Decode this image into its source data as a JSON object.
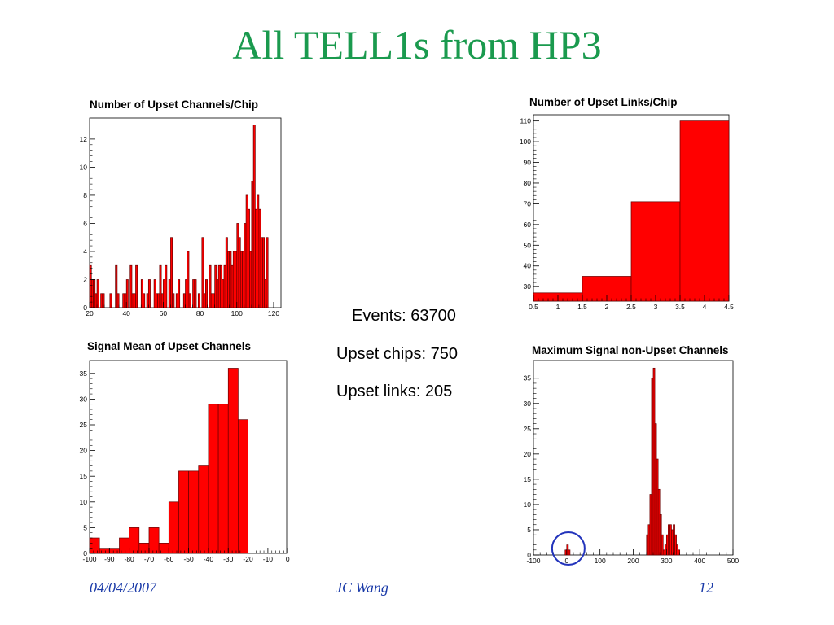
{
  "slide": {
    "title": "All TELL1s from HP3"
  },
  "stats": {
    "events": "Events: 63700",
    "upset_chips": "Upset chips: 750",
    "upset_links": "Upset links:  205"
  },
  "footer": {
    "date": "04/04/2007",
    "author": "JC Wang",
    "page": "12"
  },
  "colors": {
    "fill": "#ff0000",
    "stroke": "#000000",
    "title": "#1a9a4e",
    "footer": "#1a3aa8",
    "highlight_circle": "#2233bb"
  },
  "chart_data": [
    {
      "type": "bar",
      "title": "Number of Upset Channels/Chip",
      "xlim": [
        20,
        124
      ],
      "ylim": [
        0,
        13.5
      ],
      "xticks": [
        20,
        40,
        60,
        80,
        100,
        120
      ],
      "yticks": [
        0,
        2,
        4,
        6,
        8,
        10,
        12
      ],
      "bin_start": 20,
      "bin_width": 1,
      "values": [
        3,
        2,
        2,
        1,
        2,
        0,
        1,
        1,
        0,
        0,
        0,
        1,
        0,
        0,
        3,
        1,
        0,
        0,
        1,
        1,
        2,
        0,
        3,
        1,
        1,
        3,
        0,
        0,
        2,
        1,
        0,
        1,
        2,
        0,
        0,
        2,
        1,
        1,
        3,
        1,
        2,
        3,
        0,
        2,
        5,
        1,
        0,
        1,
        2,
        0,
        0,
        1,
        2,
        4,
        1,
        0,
        2,
        2,
        0,
        1,
        0,
        5,
        1,
        2,
        0,
        3,
        1,
        1,
        3,
        2,
        3,
        3,
        2,
        3,
        5,
        4,
        4,
        3,
        4,
        4,
        6,
        5,
        4,
        4,
        6,
        8,
        7,
        4,
        9,
        13,
        7,
        8,
        7,
        5,
        5,
        2,
        5
      ]
    },
    {
      "type": "bar",
      "title": "Number of Upset Links/Chip",
      "xlim": [
        0.5,
        4.5
      ],
      "ylim": [
        23,
        113
      ],
      "xticks": [
        0.5,
        1,
        1.5,
        2,
        2.5,
        3,
        3.5,
        4,
        4.5
      ],
      "yticks": [
        30,
        40,
        50,
        60,
        70,
        80,
        90,
        100,
        110
      ],
      "bin_start": 0.5,
      "bin_width": 1,
      "values": [
        27,
        35,
        71,
        110
      ]
    },
    {
      "type": "bar",
      "title": "Signal Mean of Upset Channels",
      "xlim": [
        -100,
        -0.5
      ],
      "ylim": [
        0,
        37.5
      ],
      "xticks": [
        -100,
        -90,
        -80,
        -70,
        -60,
        -50,
        -40,
        -30,
        -20,
        -10,
        0
      ],
      "yticks": [
        0,
        5,
        10,
        15,
        20,
        25,
        30,
        35
      ],
      "bin_start": -100,
      "bin_width": 5,
      "values": [
        3,
        1,
        1,
        3,
        5,
        2,
        5,
        2,
        10,
        16,
        16,
        17,
        29,
        29,
        36,
        26
      ]
    },
    {
      "type": "bar",
      "title": "Maximum Signal non-Upset Channels",
      "xlim": [
        -100,
        500
      ],
      "ylim": [
        0,
        38.5
      ],
      "xticks": [
        -100,
        0,
        100,
        200,
        300,
        400,
        500
      ],
      "yticks": [
        0,
        5,
        10,
        15,
        20,
        25,
        30,
        35
      ],
      "bin_start": 240,
      "bin_width": 5,
      "values": [
        4,
        6,
        12,
        35,
        37,
        26,
        19,
        13,
        8,
        4,
        1,
        2,
        4,
        6,
        6,
        5,
        6,
        4,
        2,
        1
      ],
      "extra_bins": [
        {
          "start": -5,
          "value": 1
        },
        {
          "start": 0,
          "value": 2
        },
        {
          "start": 5,
          "value": 1
        }
      ],
      "annotation": "circle around peak near 0"
    }
  ]
}
